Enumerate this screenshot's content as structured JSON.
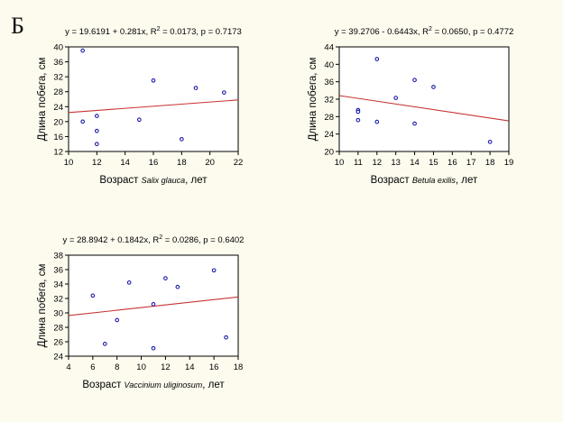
{
  "panel_letter": "Б",
  "colors": {
    "points": "#1c1ca8",
    "fit_line": "#c83232",
    "background": "#fdfbee"
  },
  "chart_data": [
    {
      "type": "scatter",
      "title": "y = 19.6191 + 0.281x, R² = 0.0173, p = 0.7173",
      "title_parts": {
        "before": "y = 19.6191 + 0.281x, R",
        "sup": "2",
        "after": " = 0.0173, p = 0.7173"
      },
      "xlabel": {
        "before": "Возраст ",
        "species": "Salix glauca",
        "after": ", лет"
      },
      "ylabel": "Длина побега, см",
      "xlim": [
        10,
        22
      ],
      "ylim": [
        12,
        40
      ],
      "xticks": [
        10,
        12,
        14,
        16,
        18,
        20,
        22
      ],
      "yticks": [
        12,
        16,
        20,
        24,
        28,
        32,
        36,
        40
      ],
      "fit": {
        "intercept": 19.6191,
        "slope": 0.281
      },
      "points": [
        {
          "x": 11,
          "y": 39
        },
        {
          "x": 11,
          "y": 20
        },
        {
          "x": 12,
          "y": 21.5
        },
        {
          "x": 12,
          "y": 17.5
        },
        {
          "x": 12,
          "y": 14
        },
        {
          "x": 15,
          "y": 20.5
        },
        {
          "x": 16,
          "y": 31
        },
        {
          "x": 18,
          "y": 15.3
        },
        {
          "x": 19,
          "y": 29
        },
        {
          "x": 21,
          "y": 27.8
        }
      ]
    },
    {
      "type": "scatter",
      "title": "y = 39.2706 - 0.6443x, R² = 0.0650, p = 0.4772",
      "title_parts": {
        "before": "y = 39.2706 - 0.6443x, R",
        "sup": "2",
        "after": " = 0.0650, p = 0.4772"
      },
      "xlabel": {
        "before": "Возраст ",
        "species": "Betula exilis",
        "after": ", лет"
      },
      "ylabel": "Длина побега, см",
      "xlim": [
        10,
        19
      ],
      "ylim": [
        20,
        44
      ],
      "xticks": [
        10,
        11,
        12,
        13,
        14,
        15,
        16,
        17,
        18,
        19
      ],
      "yticks": [
        20,
        24,
        28,
        32,
        36,
        40,
        44
      ],
      "fit": {
        "intercept": 39.2706,
        "slope": -0.6443
      },
      "points": [
        {
          "x": 11,
          "y": 29.5
        },
        {
          "x": 11,
          "y": 29.1
        },
        {
          "x": 11,
          "y": 27.2
        },
        {
          "x": 12,
          "y": 41.2
        },
        {
          "x": 12,
          "y": 26.8
        },
        {
          "x": 13,
          "y": 32.3
        },
        {
          "x": 14,
          "y": 36.4
        },
        {
          "x": 14,
          "y": 26.4
        },
        {
          "x": 15,
          "y": 34.8
        },
        {
          "x": 18,
          "y": 22.2
        }
      ]
    },
    {
      "type": "scatter",
      "title": "y = 28.8942 + 0.1842x, R² = 0.0286, p = 0.6402",
      "title_parts": {
        "before": "y = 28.8942 + 0.1842x, R",
        "sup": "2",
        "after": " = 0.0286, p = 0.6402"
      },
      "xlabel": {
        "before": "Возраст ",
        "species": "Vaccinium uliginosum",
        "after": ", лет"
      },
      "ylabel": "Длина побега, см",
      "xlim": [
        4,
        18
      ],
      "ylim": [
        24,
        38
      ],
      "xticks": [
        4,
        6,
        8,
        10,
        12,
        14,
        16,
        18
      ],
      "yticks": [
        24,
        26,
        28,
        30,
        32,
        34,
        36,
        38
      ],
      "fit": {
        "intercept": 28.8942,
        "slope": 0.1842
      },
      "points": [
        {
          "x": 6,
          "y": 32.4
        },
        {
          "x": 7,
          "y": 25.7
        },
        {
          "x": 8,
          "y": 29
        },
        {
          "x": 9,
          "y": 34.2
        },
        {
          "x": 11,
          "y": 31.2
        },
        {
          "x": 11,
          "y": 25.1
        },
        {
          "x": 12,
          "y": 34.8
        },
        {
          "x": 13,
          "y": 33.6
        },
        {
          "x": 16,
          "y": 35.9
        },
        {
          "x": 17,
          "y": 26.6
        }
      ]
    }
  ]
}
